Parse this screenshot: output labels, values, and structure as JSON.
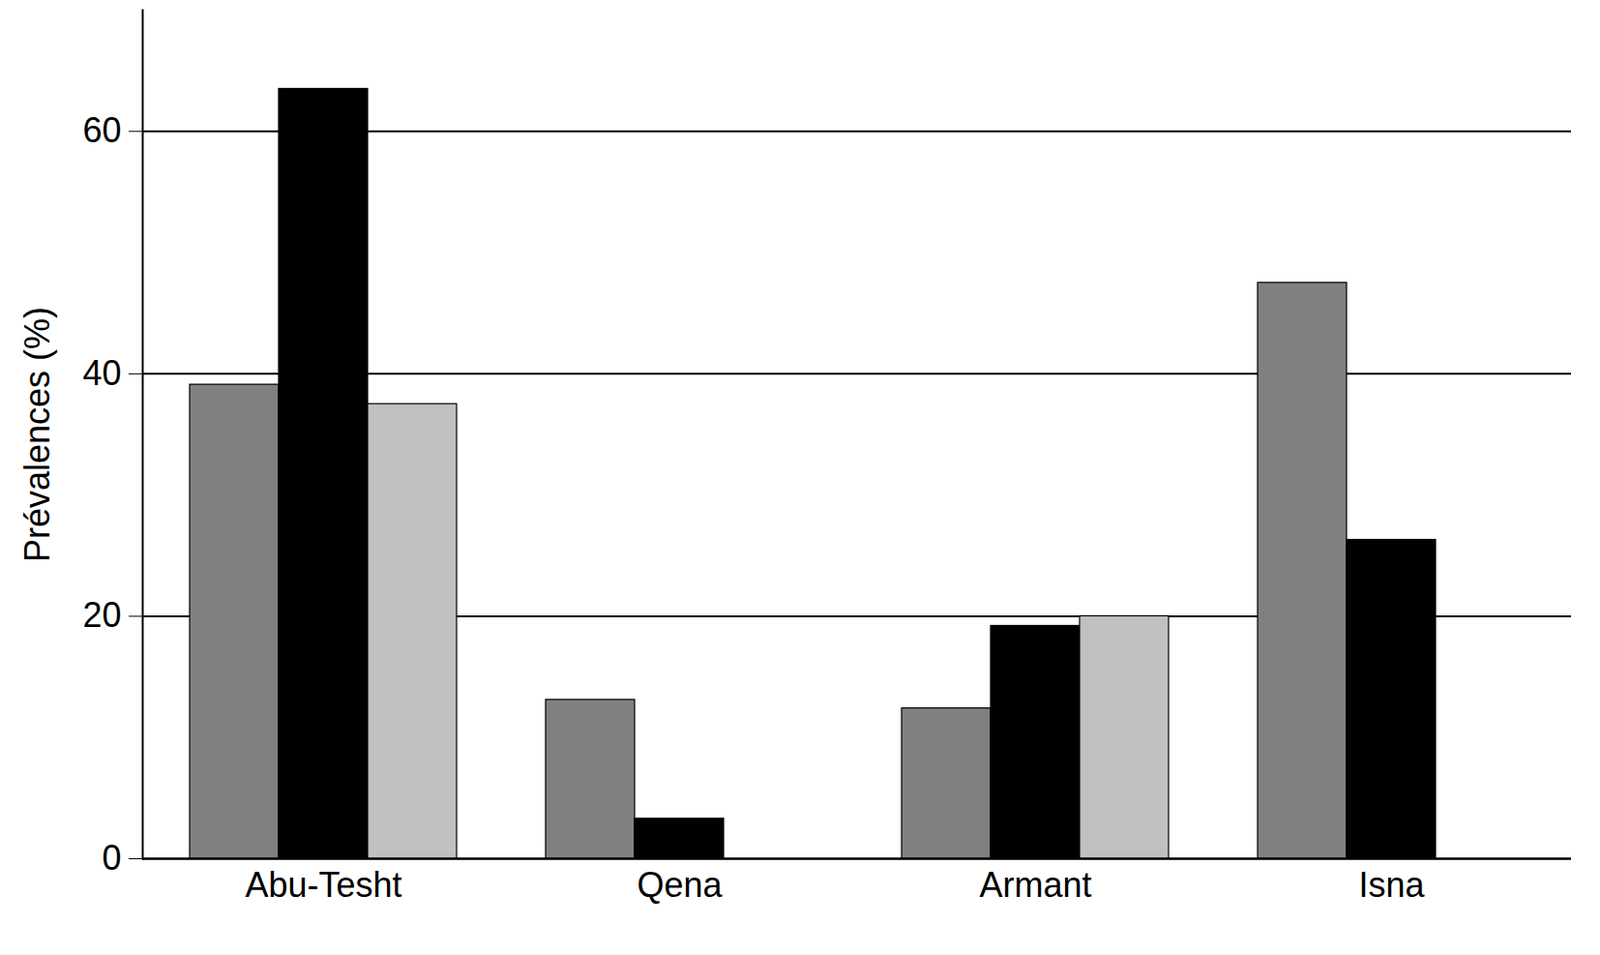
{
  "chart_data": {
    "type": "bar",
    "y_label": "Prévalences (%)",
    "categories": [
      "Abu-Tesht",
      "Qena",
      "Armant",
      "Isna"
    ],
    "series": [
      {
        "color": "#808080",
        "values": [
          39.1,
          13.1,
          12.4,
          47.5
        ]
      },
      {
        "color": "#000000",
        "values": [
          63.5,
          3.3,
          19.2,
          26.3
        ]
      },
      {
        "color": "#c0c0c0",
        "values": [
          37.5,
          null,
          20.0,
          null
        ]
      }
    ],
    "ylim": [
      0,
      70
    ],
    "yticks": [
      0,
      20,
      40,
      60
    ],
    "grid": true
  }
}
